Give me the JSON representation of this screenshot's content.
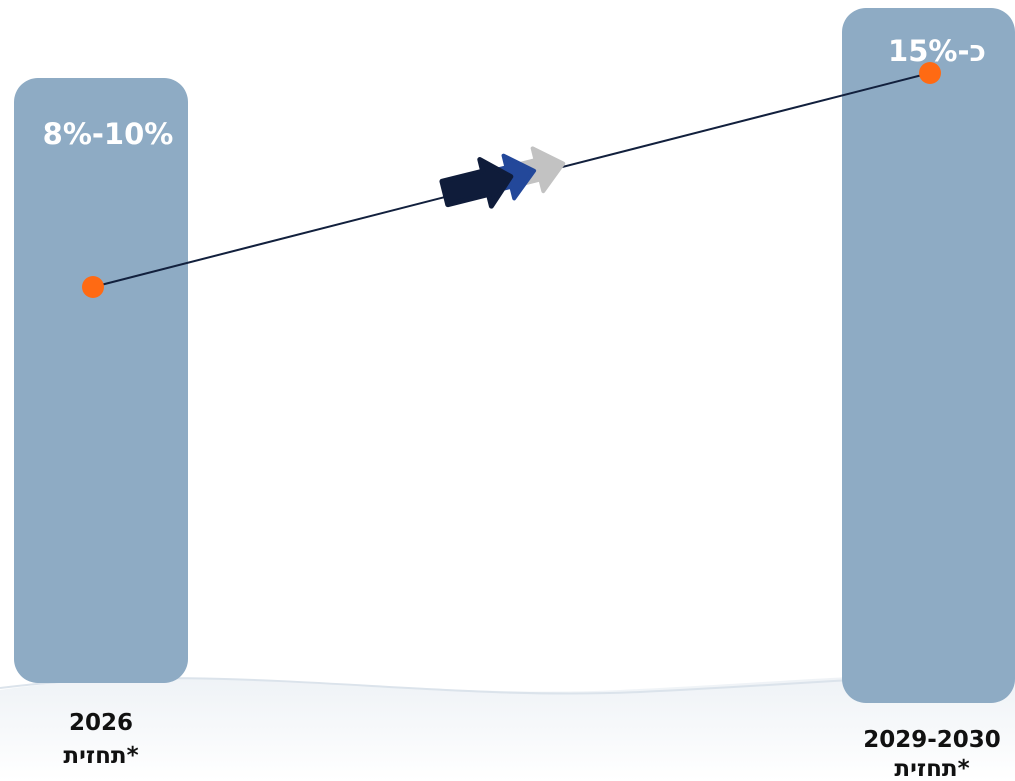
{
  "chart_data": {
    "type": "bar",
    "categories": [
      "2026\nתחזית*",
      "2029-2030\nתחזית*"
    ],
    "category_lines": [
      [
        "2026",
        "תחזית*"
      ],
      [
        "2029-2030",
        "תחזית*"
      ]
    ],
    "value_labels": [
      "8%-10%",
      "כ-15%"
    ],
    "values": [
      9,
      15
    ],
    "line_values": [
      9,
      15
    ],
    "ylim": [
      0,
      16
    ],
    "grid": false,
    "legend": "none",
    "title": "",
    "xlabel": "",
    "ylabel": "",
    "colors": {
      "bar": "#8eabc4",
      "line": "#12203d",
      "point": "#ff6a13",
      "arrow_dark": "#0f1c3a",
      "arrow_blue": "#23489a",
      "arrow_grey": "#c2c2c2"
    },
    "icons": [
      "triple-arrow-icon"
    ]
  }
}
